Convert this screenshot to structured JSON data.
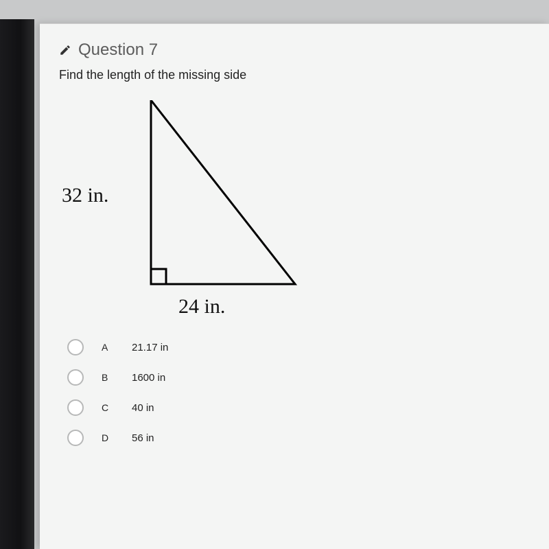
{
  "question": {
    "number_label": "Question 7",
    "prompt": "Find the length of the missing side",
    "figure": {
      "type": "right-triangle",
      "leg_vertical_label": "32 in.",
      "leg_horizontal_label": "24 in.",
      "stroke_color": "#000000",
      "stroke_width": 3,
      "apex": [
        22,
        0
      ],
      "right_angle_vertex": [
        22,
        268
      ],
      "far_vertex": [
        232,
        268
      ],
      "right_angle_box_size": 22
    },
    "options": [
      {
        "letter": "A",
        "text": "21.17 in"
      },
      {
        "letter": "B",
        "text": "1600 in"
      },
      {
        "letter": "C",
        "text": "40 in"
      },
      {
        "letter": "D",
        "text": "56 in"
      }
    ]
  },
  "style": {
    "page_bg": "#f4f5f4",
    "body_bg": "#c8c9ca",
    "title_color": "#5c5c5c",
    "text_color": "#222222",
    "serif_label_fontsize": 30,
    "radio_border": "#b7b8b8"
  }
}
